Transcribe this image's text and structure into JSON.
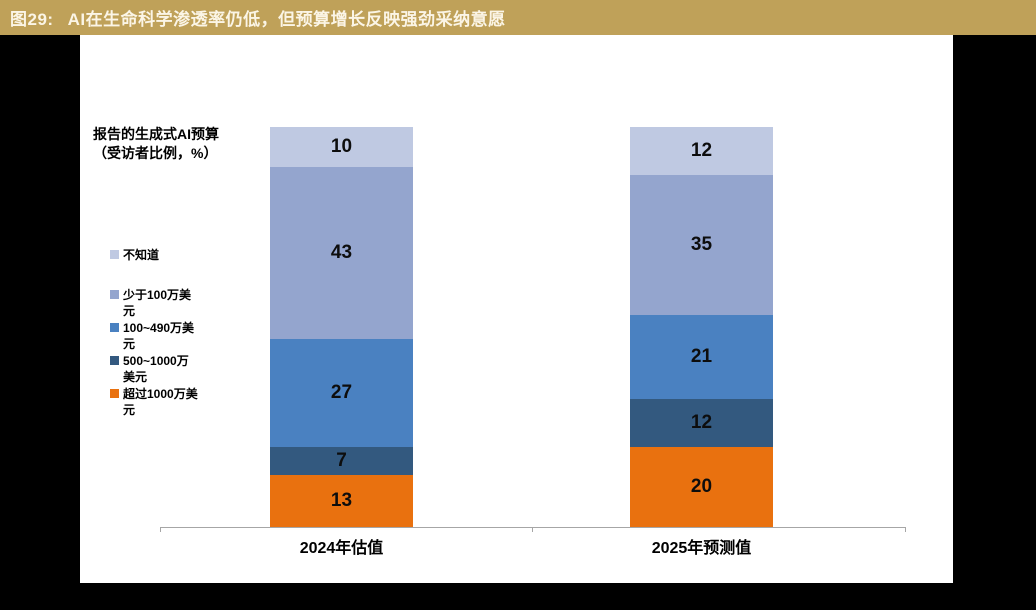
{
  "header": {
    "figure_number": "图29:",
    "title": "AI在生命科学渗透率仍低，但预算增长反映强劲采纳意愿"
  },
  "colors": {
    "titlebar_bg": "#bfa159",
    "titlebar_text": "#fbf5e6",
    "frame_bg": "#000000",
    "card_bg": "#ffffff",
    "axis": "#a6a6a6",
    "value_label_text": "#0d0d0d"
  },
  "chart_data": {
    "type": "bar",
    "stacked": true,
    "title": "报告的生成式AI预算\n（受访者比例，%）",
    "categories": [
      "2024年估值",
      "2025年预测值"
    ],
    "series": [
      {
        "name": "不知道",
        "legend_label": "不知道",
        "color": "#bfc9e2",
        "values": [
          10,
          12
        ]
      },
      {
        "name": "少于100万美元",
        "legend_label": "少于100万美\n元",
        "color": "#94a5ce",
        "values": [
          43,
          35
        ]
      },
      {
        "name": "100~490万美元",
        "legend_label": "100~490万美\n元",
        "color": "#4a81c1",
        "values": [
          27,
          21
        ]
      },
      {
        "name": "500~1000万美元",
        "legend_label": "500~1000万\n美元",
        "color": "#33597f",
        "values": [
          7,
          12
        ]
      },
      {
        "name": "超过1000万美元",
        "legend_label": "超过1000万美\n元",
        "color": "#e9710f",
        "values": [
          13,
          20
        ]
      }
    ],
    "ylim": [
      0,
      100
    ],
    "grid": false,
    "legend_position": "left",
    "value_labels": true
  }
}
